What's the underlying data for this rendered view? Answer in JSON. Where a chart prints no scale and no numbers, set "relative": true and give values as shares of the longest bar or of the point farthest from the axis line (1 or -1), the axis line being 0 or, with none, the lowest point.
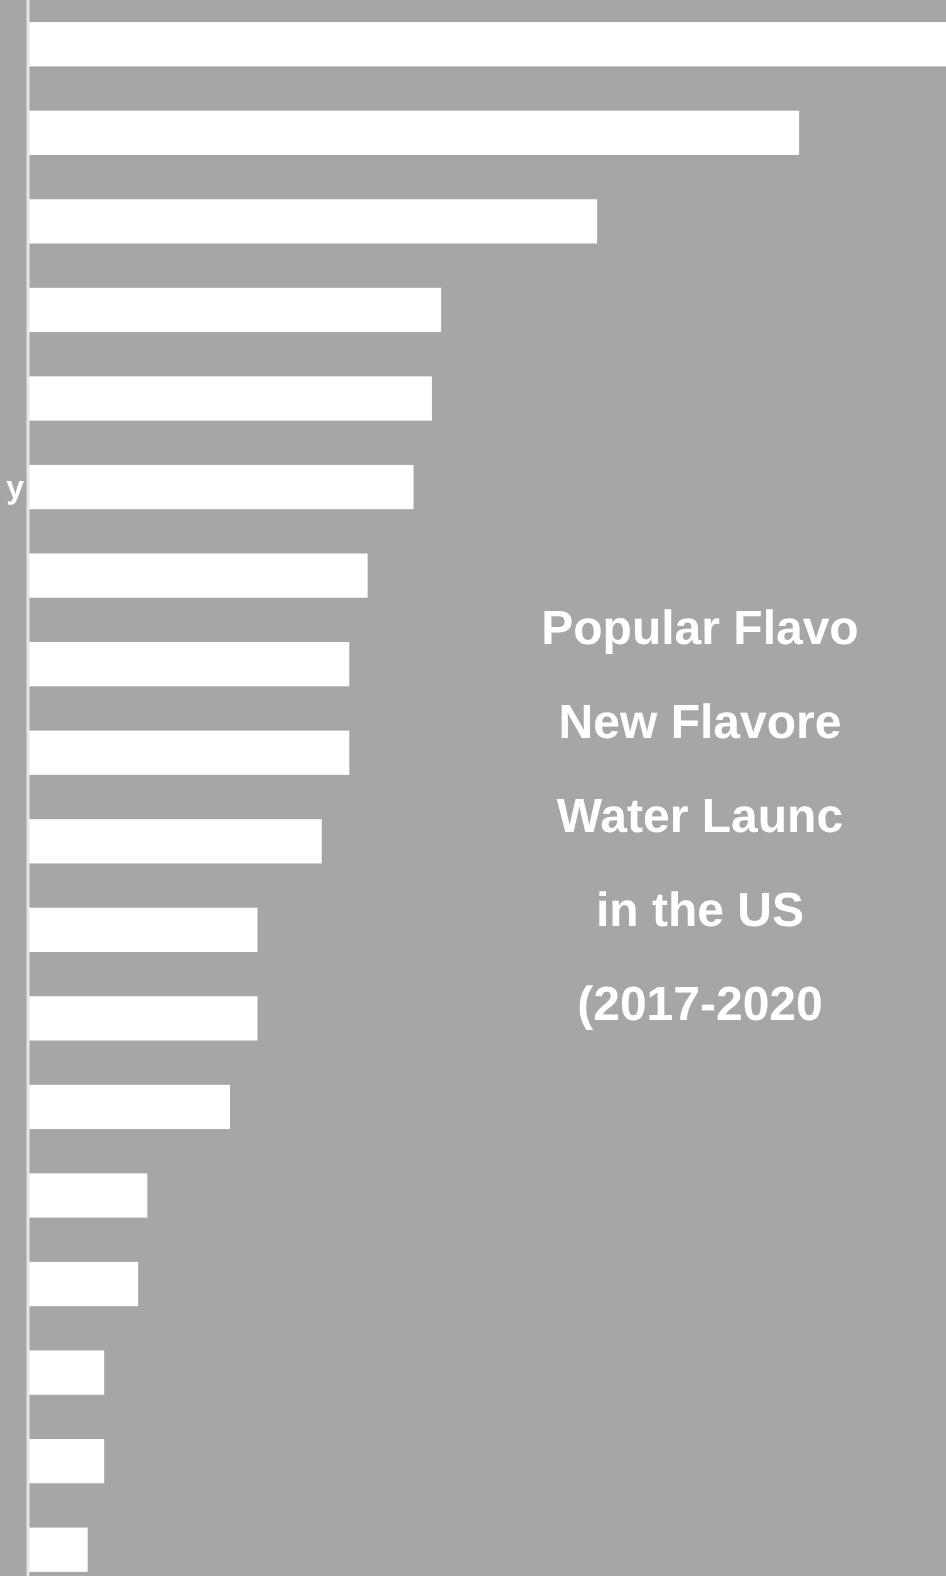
{
  "chart_data": {
    "type": "bar",
    "orientation": "horizontal",
    "relative": true,
    "title": "Popular Flavo\nNew Flavore\nWater Launc\nin the US\n(2017-2020",
    "categories": [
      null,
      null,
      null,
      null,
      null,
      "y",
      null,
      null,
      null,
      null,
      null,
      null,
      null,
      null,
      null,
      null,
      null,
      null
    ],
    "values": [
      1,
      0.84,
      0.62,
      0.45,
      0.44,
      0.42,
      0.37,
      0.35,
      0.35,
      0.32,
      0.25,
      0.25,
      0.22,
      0.13,
      0.12,
      0.083,
      0.083,
      0.065
    ],
    "color": "#ffffff"
  }
}
